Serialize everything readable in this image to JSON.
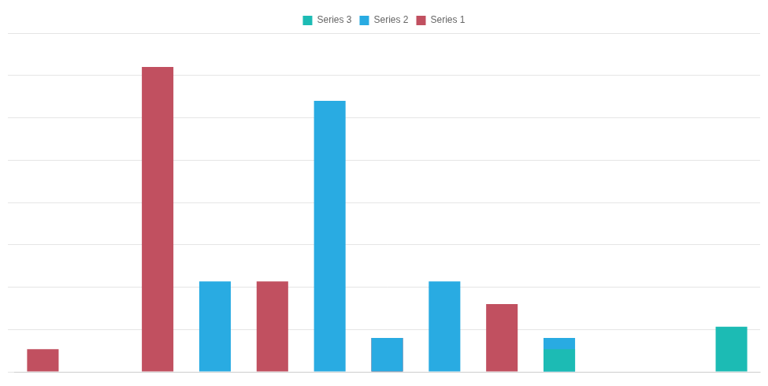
{
  "chart_data": {
    "type": "bar",
    "categories": [
      null,
      null,
      null,
      null,
      null,
      null,
      null,
      null,
      null,
      null,
      null,
      null,
      null
    ],
    "series": [
      {
        "name": "Series 1",
        "color": "#c15060",
        "values": [
          2,
          0,
          27,
          0,
          8,
          0,
          3,
          0,
          6,
          0,
          0,
          0,
          0
        ]
      },
      {
        "name": "Series 2",
        "color": "#29abe2",
        "values": [
          0,
          0,
          0,
          8,
          0,
          24,
          3,
          8,
          0,
          3,
          0,
          0,
          0
        ]
      },
      {
        "name": "Series 3",
        "color": "#1cbbb4",
        "values": [
          0,
          0,
          0,
          0,
          0,
          0,
          0,
          0,
          0,
          2,
          0,
          0,
          4
        ]
      }
    ],
    "ylim": [
      0,
      30
    ],
    "yticks": [
      0,
      3.75,
      7.5,
      11.25,
      15,
      18.75,
      22.5,
      26.25,
      30
    ],
    "grid": true,
    "legend": "top",
    "tick_labels": false
  }
}
